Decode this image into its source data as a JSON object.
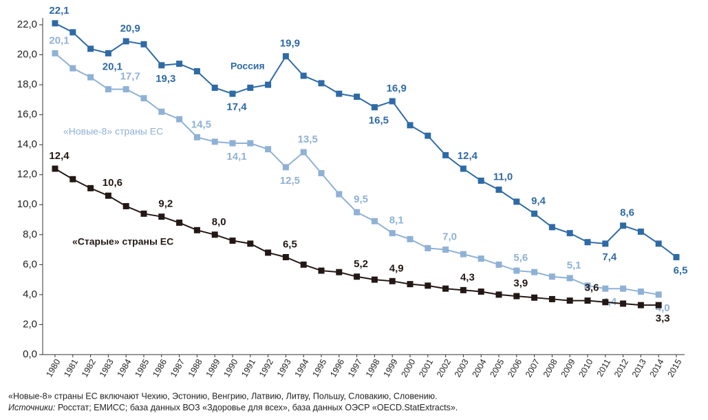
{
  "chart_data": {
    "type": "line",
    "categories": [
      "1980",
      "1981",
      "1982",
      "1983",
      "1984",
      "1985",
      "1986",
      "1987",
      "1988",
      "1989",
      "1990",
      "1991",
      "1992",
      "1993",
      "1994",
      "1995",
      "1996",
      "1997",
      "1998",
      "1999",
      "2000",
      "2001",
      "2002",
      "2003",
      "2004",
      "2005",
      "2006",
      "2007",
      "2008",
      "2009",
      "2010",
      "2011",
      "2012",
      "2013",
      "2014",
      "2015"
    ],
    "ylim": [
      0,
      22
    ],
    "yticks": [
      {
        "value": 0,
        "label": "0,0"
      },
      {
        "value": 2,
        "label": "2,0"
      },
      {
        "value": 4,
        "label": "4,0"
      },
      {
        "value": 6,
        "label": "6,0"
      },
      {
        "value": 8,
        "label": "8,0"
      },
      {
        "value": 10,
        "label": "10,0"
      },
      {
        "value": 12,
        "label": "12,0"
      },
      {
        "value": 14,
        "label": "14,0"
      },
      {
        "value": 16,
        "label": "16,0"
      },
      {
        "value": 18,
        "label": "18,0"
      },
      {
        "value": 20,
        "label": "20,0"
      },
      {
        "value": 22,
        "label": "22,0"
      }
    ],
    "series": [
      {
        "name": "Россия",
        "color": "#2e6aa6",
        "values": [
          22.1,
          21.5,
          20.4,
          20.1,
          20.9,
          20.7,
          19.3,
          19.4,
          18.9,
          17.8,
          17.4,
          17.8,
          18.0,
          19.9,
          18.6,
          18.1,
          17.4,
          17.2,
          16.5,
          16.9,
          15.3,
          14.6,
          13.3,
          12.4,
          11.6,
          11.0,
          10.2,
          9.4,
          8.5,
          8.1,
          7.5,
          7.4,
          8.6,
          8.2,
          7.4,
          6.5
        ],
        "value_labels": [
          "22,1",
          null,
          null,
          "20,1",
          "20,9",
          null,
          "19,3",
          null,
          null,
          null,
          "17,4",
          null,
          null,
          "19,9",
          null,
          null,
          null,
          null,
          "16,5",
          "16,9",
          null,
          null,
          null,
          "12,4",
          null,
          "11,0",
          null,
          "9,4",
          null,
          null,
          null,
          "7,4",
          "8,6",
          null,
          null,
          "6,5"
        ]
      },
      {
        "name": "«Новые-8» страны ЕС",
        "color": "#8fb1d6",
        "values": [
          20.1,
          19.1,
          18.5,
          17.7,
          17.7,
          17.1,
          16.2,
          15.7,
          14.5,
          14.2,
          14.1,
          14.1,
          13.7,
          12.5,
          13.5,
          12.1,
          10.7,
          9.5,
          8.9,
          8.1,
          7.7,
          7.1,
          7.0,
          6.7,
          6.4,
          6.0,
          5.6,
          5.5,
          5.2,
          5.1,
          4.6,
          4.4,
          4.4,
          4.2,
          4.0,
          null
        ],
        "value_labels": [
          "20,1",
          null,
          null,
          null,
          "17,7",
          null,
          null,
          null,
          "14,5",
          null,
          "14,1",
          null,
          null,
          "12,5",
          "13,5",
          null,
          null,
          "9,5",
          null,
          "8,1",
          null,
          null,
          "7,0",
          null,
          null,
          null,
          "5,6",
          null,
          null,
          "5,1",
          null,
          "4,4",
          null,
          null,
          "4,0",
          null
        ]
      },
      {
        "name": "«Старые» страны ЕС",
        "color": "#231815",
        "values": [
          12.4,
          11.7,
          11.1,
          10.6,
          9.9,
          9.4,
          9.2,
          8.8,
          8.3,
          8.0,
          7.6,
          7.4,
          6.8,
          6.5,
          6.0,
          5.6,
          5.5,
          5.2,
          5.0,
          4.9,
          4.7,
          4.6,
          4.4,
          4.3,
          4.2,
          4.0,
          3.9,
          3.8,
          3.7,
          3.6,
          3.6,
          3.5,
          3.4,
          3.3,
          3.3,
          null
        ],
        "value_labels": [
          "12,4",
          null,
          null,
          "10,6",
          null,
          null,
          "9,2",
          null,
          null,
          "8,0",
          null,
          null,
          null,
          "6,5",
          null,
          null,
          null,
          "5,2",
          null,
          "4,9",
          null,
          null,
          null,
          "4,3",
          null,
          null,
          "3,9",
          null,
          null,
          null,
          "3,6",
          null,
          null,
          null,
          "3,3",
          null
        ]
      }
    ],
    "footnote": "«Новые-8» страны ЕС включают Чехию, Эстонию, Венгрию, Латвию, Литву, Польшу, Словакию, Словению.",
    "sources_label": "Источники:",
    "sources": "Росстат; ЕМИСС; база данных ВОЗ «Здоровье для всех», база данных ОЭСР «OECD.StatExtracts»."
  }
}
